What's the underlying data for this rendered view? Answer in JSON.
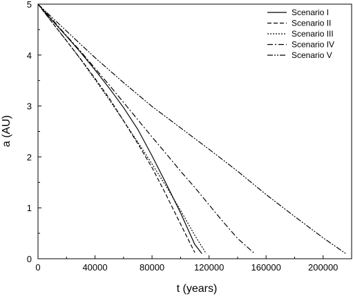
{
  "chart_data": {
    "type": "line",
    "title": "",
    "xlabel": "t (years)",
    "ylabel": "a (AU)",
    "xlim": [
      0,
      220000
    ],
    "ylim": [
      0,
      5
    ],
    "xticks": [
      0,
      40000,
      80000,
      120000,
      160000,
      200000
    ],
    "xtick_labels": [
      "0",
      "40000",
      "80000",
      "120000",
      "160000",
      "200000"
    ],
    "yticks": [
      0,
      1,
      2,
      3,
      4,
      5
    ],
    "ytick_labels": [
      "0",
      "1",
      "2",
      "3",
      "4",
      "5"
    ],
    "grid": false,
    "legend_position": "top-right",
    "series": [
      {
        "name": "Scenario I",
        "dash": "solid",
        "x": [
          0,
          10000,
          20000,
          30000,
          40000,
          50000,
          60000,
          70000,
          80000,
          90000,
          100000,
          110000,
          115000
        ],
        "y": [
          5.0,
          4.68,
          4.37,
          4.05,
          3.71,
          3.35,
          2.97,
          2.54,
          2.02,
          1.47,
          0.9,
          0.28,
          0.1
        ]
      },
      {
        "name": "Scenario II",
        "dash": "dashed",
        "x": [
          0,
          10000,
          20000,
          30000,
          40000,
          50000,
          60000,
          70000,
          80000,
          90000,
          100000,
          110000
        ],
        "y": [
          5.0,
          4.64,
          4.28,
          3.92,
          3.54,
          3.15,
          2.71,
          2.26,
          1.79,
          1.25,
          0.68,
          0.12
        ]
      },
      {
        "name": "Scenario III",
        "dash": "dotted",
        "x": [
          0,
          10000,
          20000,
          30000,
          40000,
          50000,
          60000,
          70000,
          80000,
          90000,
          100000,
          110000,
          118000
        ],
        "y": [
          5.0,
          4.64,
          4.28,
          3.91,
          3.52,
          3.12,
          2.71,
          2.29,
          1.86,
          1.42,
          0.95,
          0.46,
          0.1
        ]
      },
      {
        "name": "Scenario IV",
        "dash": "dashdot",
        "x": [
          0,
          10000,
          20000,
          30000,
          40000,
          50000,
          60000,
          70000,
          80000,
          90000,
          100000,
          110000,
          120000,
          130000,
          140000,
          152000
        ],
        "y": [
          5.0,
          4.7,
          4.38,
          4.07,
          3.74,
          3.41,
          3.07,
          2.73,
          2.39,
          2.06,
          1.72,
          1.4,
          1.06,
          0.72,
          0.4,
          0.1
        ]
      },
      {
        "name": "Scenario V",
        "dash": "dashdotdot",
        "x": [
          0,
          20000,
          40000,
          60000,
          80000,
          100000,
          120000,
          140000,
          160000,
          180000,
          200000,
          216000
        ],
        "y": [
          5.0,
          4.47,
          3.95,
          3.46,
          2.99,
          2.57,
          2.15,
          1.72,
          1.26,
          0.83,
          0.41,
          0.1
        ]
      }
    ]
  }
}
